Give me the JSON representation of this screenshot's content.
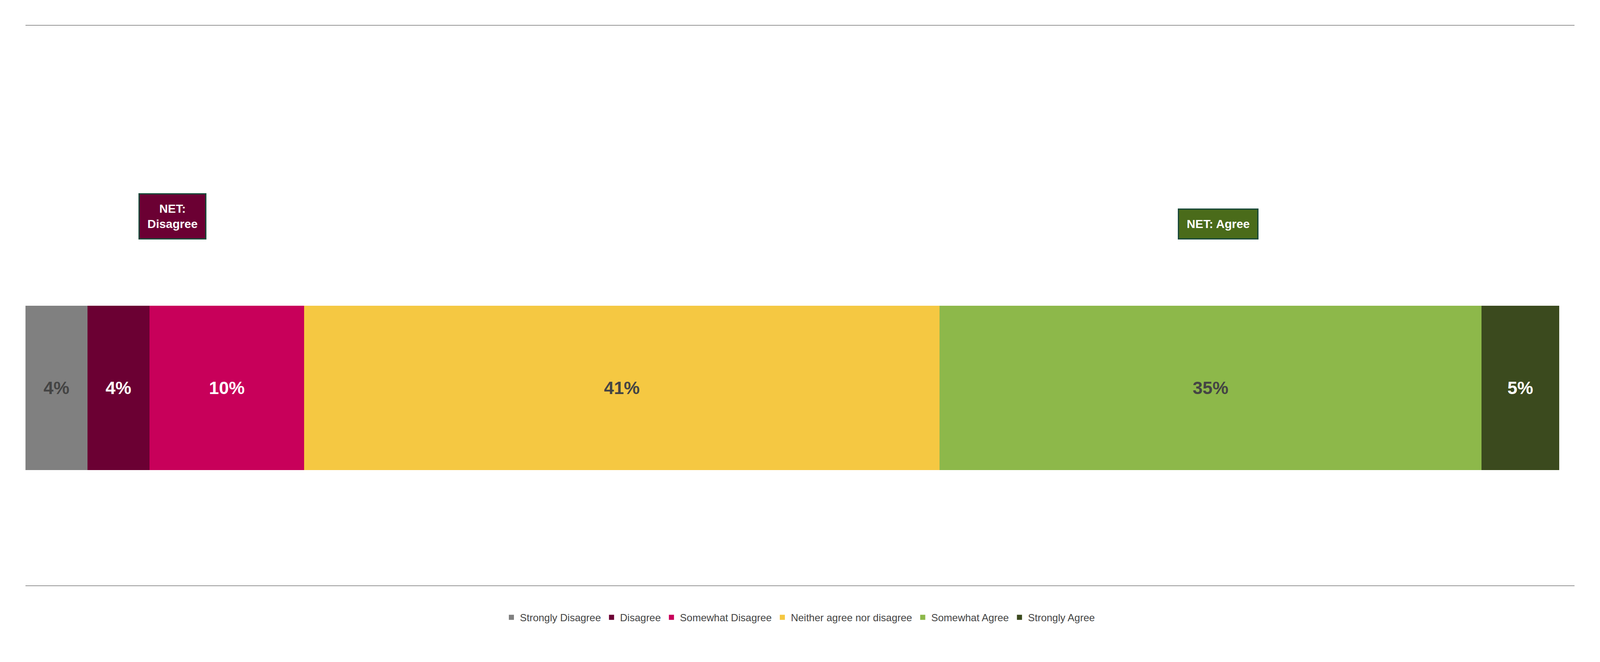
{
  "chart_data": {
    "type": "bar",
    "orientation": "horizontal",
    "stacked": true,
    "categories": [
      null
    ],
    "series": [
      {
        "name": "Strongly Disagree",
        "color": "#808080",
        "values": [
          4
        ],
        "value_labels": [
          "4%"
        ]
      },
      {
        "name": "Disagree",
        "color": "#6B0033",
        "values": [
          4
        ],
        "value_labels": [
          "4%"
        ]
      },
      {
        "name": "Somewhat Disagree",
        "color": "#C8005A",
        "values": [
          10
        ],
        "value_labels": [
          "10%"
        ]
      },
      {
        "name": "Neither agree nor disagree",
        "color": "#F5C842",
        "values": [
          41
        ],
        "value_labels": [
          "41%"
        ]
      },
      {
        "name": "Somewhat Agree",
        "color": "#8DB84A",
        "values": [
          35
        ],
        "value_labels": [
          "35%"
        ]
      },
      {
        "name": "Strongly Agree",
        "color": "#3B4A1E",
        "values": [
          5
        ],
        "value_labels": [
          "5%"
        ]
      }
    ],
    "xlim": [
      0,
      100
    ],
    "tick_labels": false,
    "grid": false,
    "legend": "bottom",
    "data_labels": true,
    "annotations": [
      {
        "text": "NET:\nDisagree",
        "color": "#6B0033"
      },
      {
        "text": "NET: Agree",
        "color": "#4A6B1A"
      }
    ]
  }
}
